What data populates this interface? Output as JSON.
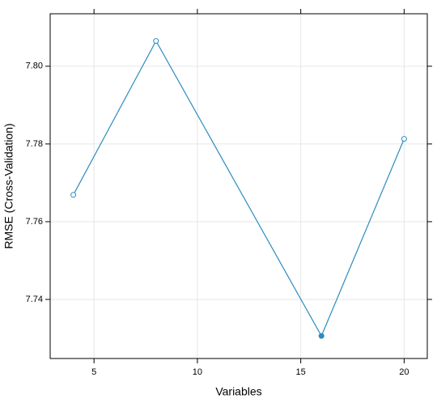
{
  "chart_data": {
    "type": "line",
    "xlabel": "Variables",
    "ylabel": "RMSE (Cross-Validation)",
    "x": [
      4,
      8,
      16,
      20
    ],
    "series": [
      {
        "color": "#2b8cbe",
        "values": [
          7.7669,
          7.8065,
          7.7306,
          7.7813
        ],
        "filled": [
          false,
          false,
          true,
          false
        ]
      }
    ],
    "xlim": [
      2.88,
      21.12
    ],
    "xticks": [
      5,
      10,
      15,
      20
    ],
    "ylim": [
      7.7248,
      7.8135
    ],
    "yticks": [
      7.74,
      7.76,
      7.78,
      {
        "value": 7.8,
        "label": "7.80"
      }
    ],
    "grid": true
  }
}
